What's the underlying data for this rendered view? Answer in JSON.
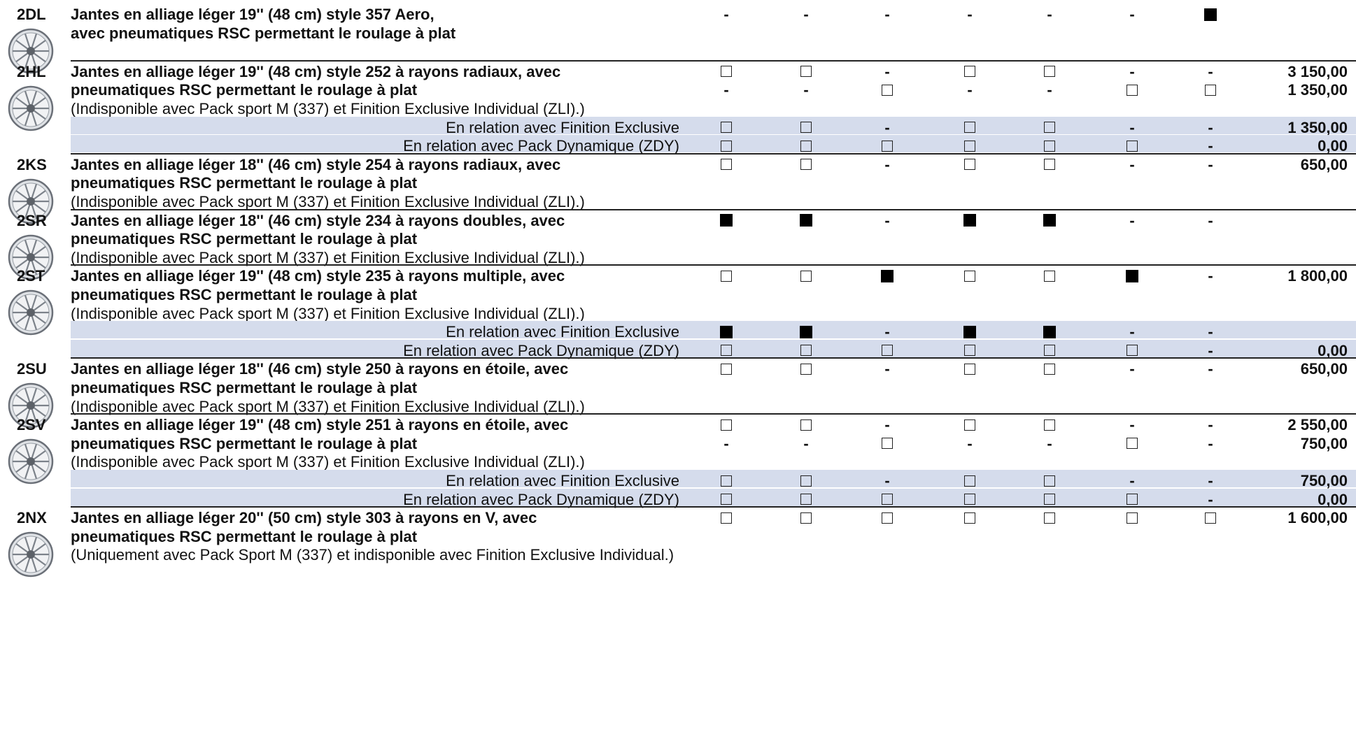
{
  "mark_symbols": {
    "standard": "■",
    "option": "□",
    "unavailable": "-"
  },
  "colors": {
    "band": "#d5dcec",
    "separator": "#222222",
    "text": "#111111"
  },
  "options": [
    {
      "code": "2DL",
      "lines": [
        "Jantes en alliage léger 19'' (48 cm) style 357 Aero,",
        "avec pneumatiques RSC permettant le roulage à plat"
      ],
      "note": "",
      "prices": [
        {
          "marks": [
            "unavailable",
            "unavailable",
            "unavailable",
            "unavailable",
            "unavailable",
            "unavailable",
            "standard"
          ],
          "price": ""
        }
      ],
      "relations": []
    },
    {
      "code": "2HL",
      "lines": [
        "Jantes en alliage léger 19'' (48 cm) style 252 à rayons radiaux, avec",
        "pneumatiques RSC permettant le roulage à plat"
      ],
      "note": "(Indisponible avec Pack sport M (337) et Finition Exclusive Individual (ZLI).)",
      "prices": [
        {
          "marks": [
            "option",
            "option",
            "unavailable",
            "option",
            "option",
            "unavailable",
            "unavailable"
          ],
          "price": "3 150,00"
        },
        {
          "marks": [
            "unavailable",
            "unavailable",
            "option",
            "unavailable",
            "unavailable",
            "option",
            "option"
          ],
          "price": "1 350,00"
        }
      ],
      "relations": [
        {
          "label": "En relation avec Finition Exclusive",
          "marks": [
            "option",
            "option",
            "unavailable",
            "option",
            "option",
            "unavailable",
            "unavailable"
          ],
          "price": "1 350,00"
        },
        {
          "label": "En relation avec Pack Dynamique (ZDY)",
          "marks": [
            "option",
            "option",
            "option",
            "option",
            "option",
            "option",
            "unavailable"
          ],
          "price": "0,00"
        }
      ]
    },
    {
      "code": "2KS",
      "lines": [
        "Jantes en alliage léger 18'' (46 cm) style 254 à rayons radiaux, avec",
        "pneumatiques RSC permettant le roulage à plat"
      ],
      "note": "(Indisponible avec Pack sport M (337) et Finition Exclusive Individual (ZLI).)",
      "prices": [
        {
          "marks": [
            "option",
            "option",
            "unavailable",
            "option",
            "option",
            "unavailable",
            "unavailable"
          ],
          "price": "650,00"
        }
      ],
      "relations": []
    },
    {
      "code": "2SR",
      "lines": [
        "Jantes en alliage léger 18'' (46 cm) style 234 à rayons doubles, avec",
        "pneumatiques RSC permettant le roulage à plat"
      ],
      "note": "(Indisponible avec Pack sport M (337) et Finition Exclusive Individual (ZLI).)",
      "prices": [
        {
          "marks": [
            "standard",
            "standard",
            "unavailable",
            "standard",
            "standard",
            "unavailable",
            "unavailable"
          ],
          "price": ""
        }
      ],
      "relations": []
    },
    {
      "code": "2ST",
      "lines": [
        "Jantes en alliage léger 19'' (48 cm) style 235 à rayons multiple, avec",
        "pneumatiques RSC permettant le roulage à plat"
      ],
      "note": "(Indisponible avec Pack sport M (337) et Finition Exclusive Individual (ZLI).)",
      "prices": [
        {
          "marks": [
            "option",
            "option",
            "standard",
            "option",
            "option",
            "standard",
            "unavailable"
          ],
          "price": "1 800,00"
        }
      ],
      "relations": [
        {
          "label": "En relation avec Finition Exclusive",
          "marks": [
            "standard",
            "standard",
            "unavailable",
            "standard",
            "standard",
            "unavailable",
            "unavailable"
          ],
          "price": ""
        },
        {
          "label": "En relation avec Pack Dynamique (ZDY)",
          "marks": [
            "option",
            "option",
            "option",
            "option",
            "option",
            "option",
            "unavailable"
          ],
          "price": "0,00"
        }
      ]
    },
    {
      "code": "2SU",
      "lines": [
        "Jantes en alliage léger 18'' (46 cm) style 250 à rayons en étoile, avec",
        "pneumatiques RSC permettant le roulage à plat"
      ],
      "note": "(Indisponible avec Pack sport M (337) et Finition Exclusive Individual (ZLI).)",
      "prices": [
        {
          "marks": [
            "option",
            "option",
            "unavailable",
            "option",
            "option",
            "unavailable",
            "unavailable"
          ],
          "price": "650,00"
        }
      ],
      "relations": []
    },
    {
      "code": "2SV",
      "lines": [
        "Jantes en alliage léger 19'' (48 cm) style 251 à rayons en étoile, avec",
        "pneumatiques RSC permettant le roulage à plat"
      ],
      "note": "(Indisponible avec Pack sport M (337) et Finition Exclusive Individual (ZLI).)",
      "prices": [
        {
          "marks": [
            "option",
            "option",
            "unavailable",
            "option",
            "option",
            "unavailable",
            "unavailable"
          ],
          "price": "2 550,00"
        },
        {
          "marks": [
            "unavailable",
            "unavailable",
            "option",
            "unavailable",
            "unavailable",
            "option",
            "unavailable"
          ],
          "price": "750,00"
        }
      ],
      "relations": [
        {
          "label": "En relation avec Finition Exclusive",
          "marks": [
            "option",
            "option",
            "unavailable",
            "option",
            "option",
            "unavailable",
            "unavailable"
          ],
          "price": "750,00"
        },
        {
          "label": "En relation avec Pack Dynamique (ZDY)",
          "marks": [
            "option",
            "option",
            "option",
            "option",
            "option",
            "option",
            "unavailable"
          ],
          "price": "0,00"
        }
      ]
    },
    {
      "code": "2NX",
      "lines": [
        "Jantes en alliage léger 20'' (50 cm) style 303 à rayons en V, avec",
        "pneumatiques RSC permettant le roulage à plat"
      ],
      "note": "(Uniquement avec Pack Sport M (337) et indisponible avec Finition Exclusive Individual.)",
      "prices": [
        {
          "marks": [
            "option",
            "option",
            "option",
            "option",
            "option",
            "option",
            "option"
          ],
          "price": "1 600,00"
        }
      ],
      "relations": []
    }
  ]
}
